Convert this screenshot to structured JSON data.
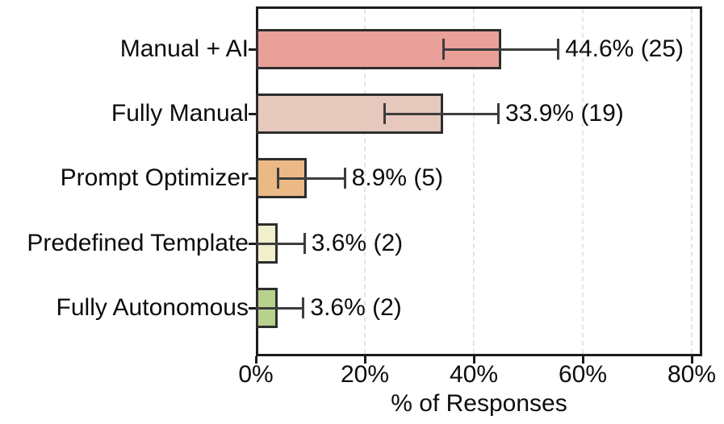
{
  "chart_data": {
    "type": "bar",
    "orientation": "horizontal",
    "title": "",
    "xlabel": "% of Responses",
    "ylabel": "",
    "xlim": [
      0,
      82
    ],
    "grid": "vertical dashed at x ticks",
    "x_ticks": [
      {
        "value": 0,
        "label": "0%"
      },
      {
        "value": 20,
        "label": "20%"
      },
      {
        "value": 40,
        "label": "40%"
      },
      {
        "value": 60,
        "label": "60%"
      },
      {
        "value": 80,
        "label": "80%"
      }
    ],
    "bars": [
      {
        "category": "Manual + AI",
        "value": 44.6,
        "count": 25,
        "label": "44.6% (25)",
        "err_low": 34.2,
        "err_high": 55.6,
        "color": "#e9a099"
      },
      {
        "category": "Fully Manual",
        "value": 33.9,
        "count": 19,
        "label": "33.9% (19)",
        "err_low": 23.4,
        "err_high": 44.6,
        "color": "#e7c8bc"
      },
      {
        "category": "Prompt Optimizer",
        "value": 8.9,
        "count": 5,
        "label": "8.9% (5)",
        "err_low": 3.9,
        "err_high": 16.4,
        "color": "#ebb985"
      },
      {
        "category": "Predefined Template",
        "value": 3.6,
        "count": 2,
        "label": "3.6% (2)",
        "err_low": 0,
        "err_high": 9.0,
        "color": "#f1efcc"
      },
      {
        "category": "Fully Autonomous",
        "value": 3.6,
        "count": 2,
        "label": "3.6% (2)",
        "err_low": 0,
        "err_high": 8.8,
        "color": "#b7d28d"
      }
    ],
    "style": {
      "bar_border_color": "#2d2d2d",
      "error_bar_color": "#3d3d3d",
      "spine_color": "#1b1b1b",
      "gridline_color": "#e4e4e4",
      "text_color": "#0d0d0d"
    }
  }
}
